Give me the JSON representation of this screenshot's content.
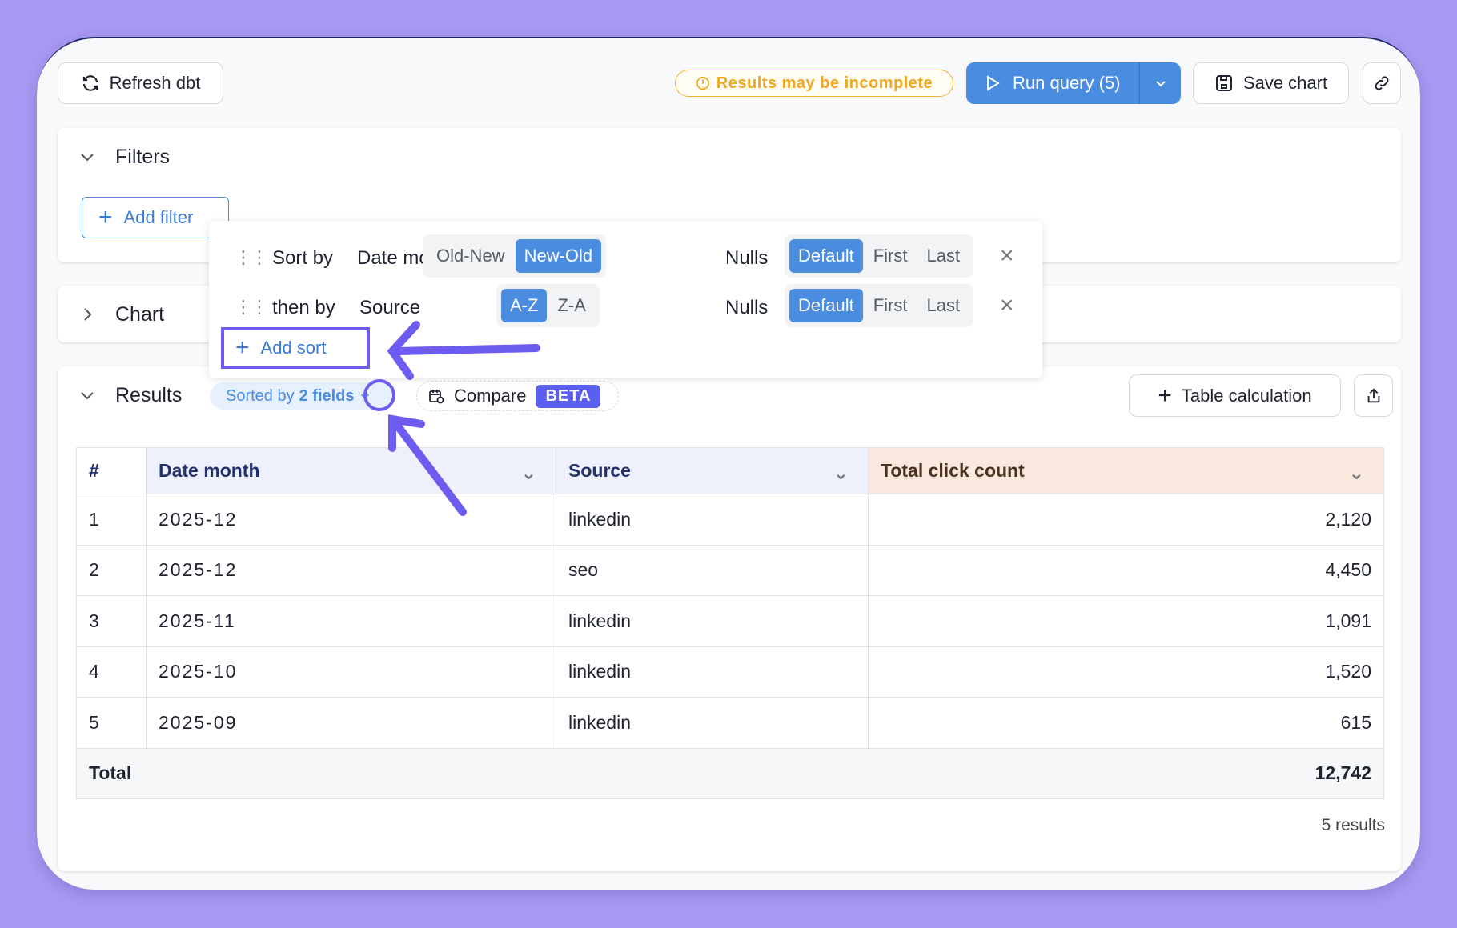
{
  "toolbar": {
    "refresh_label": "Refresh dbt",
    "warning": "Results may be incomplete",
    "run_label": "Run query (5)",
    "save_label": "Save chart"
  },
  "filters": {
    "title": "Filters",
    "add_filter": "Add filter"
  },
  "chart": {
    "title": "Chart"
  },
  "sort_popover": {
    "rows": [
      {
        "prefix": "Sort by",
        "field": "Date month",
        "options": [
          "Old-New",
          "New-Old"
        ],
        "selected": "New-Old",
        "nulls_label": "Nulls",
        "nulls_options": [
          "Default",
          "First",
          "Last"
        ],
        "nulls_selected": "Default"
      },
      {
        "prefix": "then by",
        "field": "Source",
        "options": [
          "A-Z",
          "Z-A"
        ],
        "selected": "A-Z",
        "nulls_label": "Nulls",
        "nulls_options": [
          "Default",
          "First",
          "Last"
        ],
        "nulls_selected": "Default"
      }
    ],
    "add_sort": "Add sort"
  },
  "results": {
    "title": "Results",
    "sorted_prefix": "Sorted by",
    "sorted_count": "2 fields",
    "compare": "Compare",
    "beta": "BETA",
    "table_calc": "Table calculation",
    "columns": [
      "#",
      "Date month",
      "Source",
      "Total click count"
    ],
    "rows": [
      [
        "1",
        "2025-12",
        "linkedin",
        "2,120"
      ],
      [
        "2",
        "2025-12",
        "seo",
        "4,450"
      ],
      [
        "3",
        "2025-11",
        "linkedin",
        "1,091"
      ],
      [
        "4",
        "2025-10",
        "linkedin",
        "1,520"
      ],
      [
        "5",
        "2025-09",
        "linkedin",
        "615"
      ]
    ],
    "total_label": "Total",
    "total_value": "12,742",
    "count": "5 results"
  },
  "colors": {
    "accent": "#4a8ce0",
    "annotation": "#6c5cf0",
    "warning": "#f0b232",
    "background": "#a99af3"
  }
}
